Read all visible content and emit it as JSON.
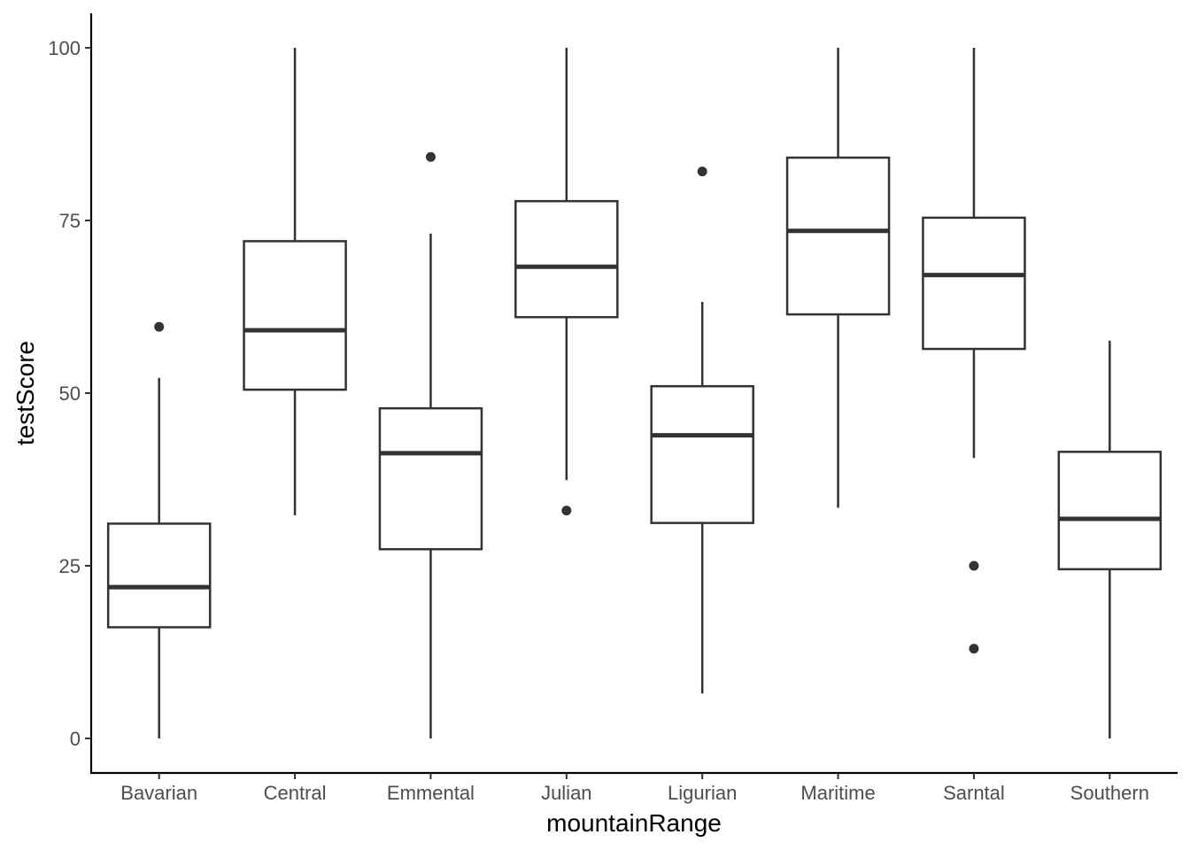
{
  "chart_data": {
    "type": "boxplot",
    "title": "",
    "xlabel": "mountainRange",
    "ylabel": "testScore",
    "ylim": [
      -5,
      105
    ],
    "yticks": [
      0,
      25,
      50,
      75,
      100
    ],
    "ytick_labels": [
      "0",
      "25",
      "50",
      "75",
      "100"
    ],
    "grid": false,
    "legend": "none",
    "color": "#333333",
    "categories": [
      "Bavarian",
      "Central",
      "Emmental",
      "Julian",
      "Ligurian",
      "Maritime",
      "Sarntal",
      "Southern"
    ],
    "boxes": [
      {
        "category": "Bavarian",
        "whisker_low": 0,
        "q1": 16.1,
        "median": 21.9,
        "q3": 31.1,
        "whisker_high": 52.2,
        "outliers": [
          59.6
        ]
      },
      {
        "category": "Central",
        "whisker_low": 32.3,
        "q1": 50.5,
        "median": 59.1,
        "q3": 72.0,
        "whisker_high": 100,
        "outliers": []
      },
      {
        "category": "Emmental",
        "whisker_low": 0,
        "q1": 27.4,
        "median": 41.3,
        "q3": 47.8,
        "whisker_high": 73.1,
        "outliers": [
          84.2
        ]
      },
      {
        "category": "Julian",
        "whisker_low": 37.4,
        "q1": 61.0,
        "median": 68.3,
        "q3": 77.8,
        "whisker_high": 100,
        "outliers": [
          33.0
        ]
      },
      {
        "category": "Ligurian",
        "whisker_low": 6.5,
        "q1": 31.2,
        "median": 43.9,
        "q3": 51.0,
        "whisker_high": 63.2,
        "outliers": [
          82.1
        ]
      },
      {
        "category": "Maritime",
        "whisker_low": 33.4,
        "q1": 61.4,
        "median": 73.5,
        "q3": 84.1,
        "whisker_high": 100,
        "outliers": []
      },
      {
        "category": "Sarntal",
        "whisker_low": 40.6,
        "q1": 56.4,
        "median": 67.1,
        "q3": 75.4,
        "whisker_high": 100,
        "outliers": [
          25.0,
          13.0
        ]
      },
      {
        "category": "Southern",
        "whisker_low": 0,
        "q1": 24.5,
        "median": 31.8,
        "q3": 41.5,
        "whisker_high": 57.6,
        "outliers": []
      }
    ]
  }
}
